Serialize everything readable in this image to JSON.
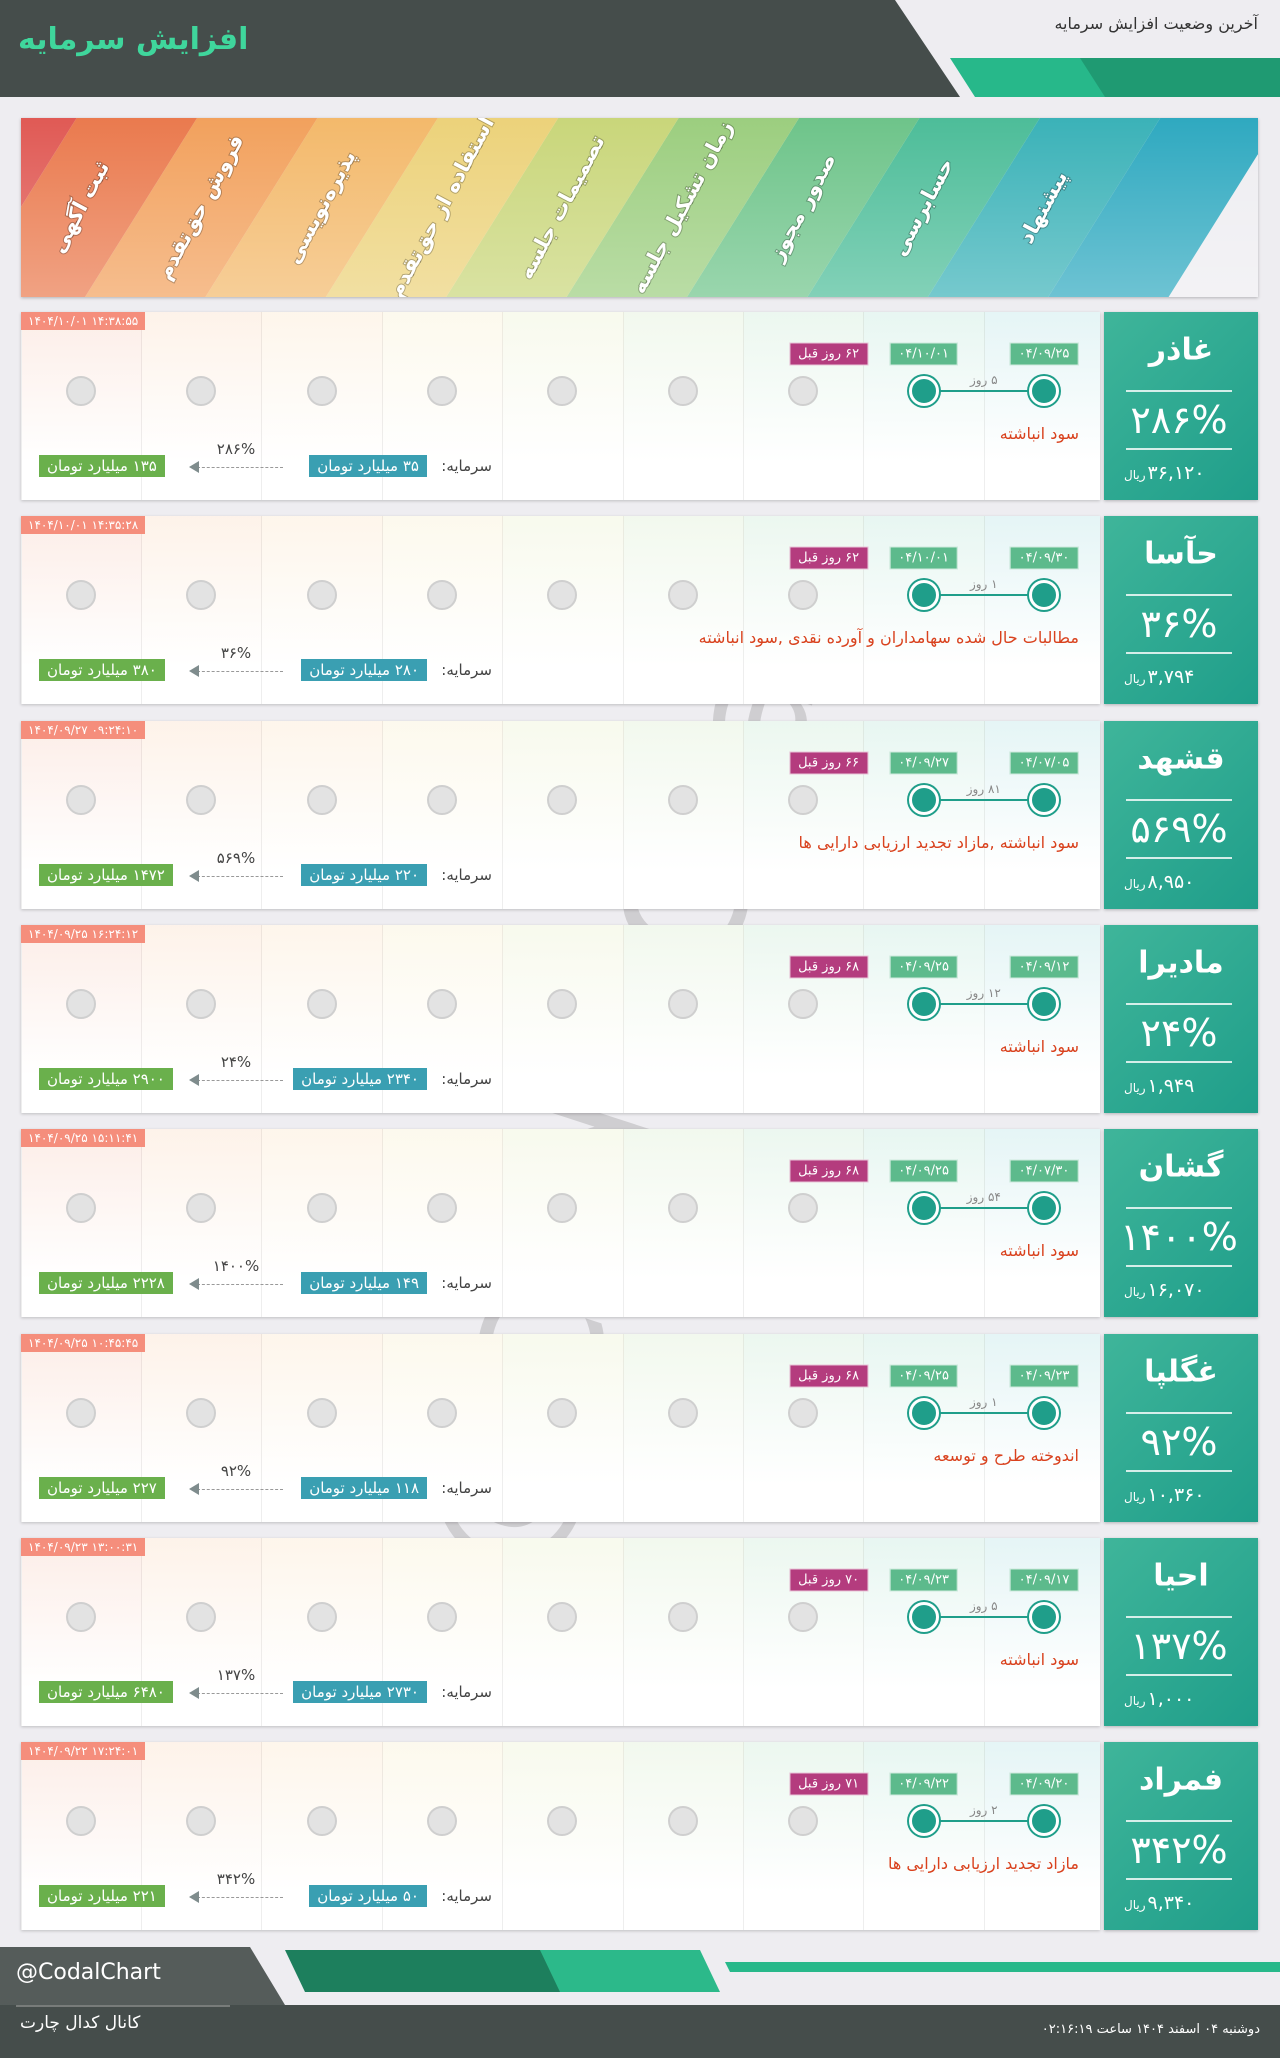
{
  "header": {
    "title": "افزایش سرمایه",
    "subtitle": "آخرین وضعیت افزایش سرمایه"
  },
  "stages": [
    "پیشنهاد",
    "حسابرسی",
    "صدور مجوز",
    "زمان تشکیل جلسه",
    "تصمیمات جلسه",
    "استفاده از حق‌تقدم",
    "پذیره‌نویسی",
    "فروش حق‌تقدم",
    "ثبت آگهی"
  ],
  "labels": {
    "capital": "سرمایه:",
    "currency": "ریال"
  },
  "rows": [
    {
      "symbol": "غاذر",
      "percent": "۲۸۶%",
      "price": "۳۶,۱۲۰",
      "timestamp": "۱۴۰۴/۱۰/۰۱ ۱۴:۳۸:۵۵",
      "start_date": "۰۴/۰۹/۲۵",
      "end_date": "۰۴/۱۰/۰۱",
      "days_ago": "۶۲ روز قبل",
      "duration": "۵ روز",
      "description": "سود انباشته",
      "capital_from": "۳۵ میلیارد تومان",
      "capital_to": "۱۳۵ میلیارد تومان",
      "growth": "۲۸۶%"
    },
    {
      "symbol": "حآسا",
      "percent": "۳۶%",
      "price": "۳,۷۹۴",
      "timestamp": "۱۴۰۴/۱۰/۰۱ ۱۴:۳۵:۲۸",
      "start_date": "۰۴/۰۹/۳۰",
      "end_date": "۰۴/۱۰/۰۱",
      "days_ago": "۶۲ روز قبل",
      "duration": "۱ روز",
      "description": "مطالبات حال شده سهامداران و آورده نقدی ,سود انباشته",
      "capital_from": "۲۸۰ میلیارد تومان",
      "capital_to": "۳۸۰ میلیارد تومان",
      "growth": "۳۶%"
    },
    {
      "symbol": "قشهد",
      "percent": "۵۶۹%",
      "price": "۸,۹۵۰",
      "timestamp": "۱۴۰۴/۰۹/۲۷ ۰۹:۲۴:۱۰",
      "start_date": "۰۴/۰۷/۰۵",
      "end_date": "۰۴/۰۹/۲۷",
      "days_ago": "۶۶ روز قبل",
      "duration": "۸۱ روز",
      "description": "سود انباشته ,مازاد تجدید ارزیابی دارایی ها",
      "capital_from": "۲۲۰ میلیارد تومان",
      "capital_to": "۱۴۷۲ میلیارد تومان",
      "growth": "۵۶۹%"
    },
    {
      "symbol": "مادیرا",
      "percent": "۲۴%",
      "price": "۱,۹۴۹",
      "timestamp": "۱۴۰۴/۰۹/۲۵ ۱۶:۲۴:۱۲",
      "start_date": "۰۴/۰۹/۱۲",
      "end_date": "۰۴/۰۹/۲۵",
      "days_ago": "۶۸ روز قبل",
      "duration": "۱۲ روز",
      "description": "سود انباشته",
      "capital_from": "۲۳۴۰ میلیارد تومان",
      "capital_to": "۲۹۰۰ میلیارد تومان",
      "growth": "۲۴%"
    },
    {
      "symbol": "گشان",
      "percent": "۱۴۰۰%",
      "price": "۱۶,۰۷۰",
      "timestamp": "۱۴۰۴/۰۹/۲۵ ۱۵:۱۱:۴۱",
      "start_date": "۰۴/۰۷/۳۰",
      "end_date": "۰۴/۰۹/۲۵",
      "days_ago": "۶۸ روز قبل",
      "duration": "۵۴ روز",
      "description": "سود انباشته",
      "capital_from": "۱۴۹ میلیارد تومان",
      "capital_to": "۲۲۲۸ میلیارد تومان",
      "growth": "۱۴۰۰%"
    },
    {
      "symbol": "غگلپا",
      "percent": "۹۲%",
      "price": "۱۰,۳۶۰",
      "timestamp": "۱۴۰۴/۰۹/۲۵ ۱۰:۴۵:۴۵",
      "start_date": "۰۴/۰۹/۲۳",
      "end_date": "۰۴/۰۹/۲۵",
      "days_ago": "۶۸ روز قبل",
      "duration": "۱ روز",
      "description": "اندوخته طرح و توسعه",
      "capital_from": "۱۱۸ میلیارد تومان",
      "capital_to": "۲۲۷ میلیارد تومان",
      "growth": "۹۲%"
    },
    {
      "symbol": "احیا",
      "percent": "۱۳۷%",
      "price": "۱,۰۰۰",
      "timestamp": "۱۴۰۴/۰۹/۲۳ ۱۳:۰۰:۳۱",
      "start_date": "۰۴/۰۹/۱۷",
      "end_date": "۰۴/۰۹/۲۳",
      "days_ago": "۷۰ روز قبل",
      "duration": "۵ روز",
      "description": "سود انباشته",
      "capital_from": "۲۷۳۰ میلیارد تومان",
      "capital_to": "۶۴۸۰ میلیارد تومان",
      "growth": "۱۳۷%"
    },
    {
      "symbol": "فمراد",
      "percent": "۳۴۲%",
      "price": "۹,۳۴۰",
      "timestamp": "۱۴۰۴/۰۹/۲۲ ۱۷:۲۴:۰۱",
      "start_date": "۰۴/۰۹/۲۰",
      "end_date": "۰۴/۰۹/۲۲",
      "days_ago": "۷۱ روز قبل",
      "duration": "۲ روز",
      "description": "مازاد تجدید ارزیابی دارایی ها",
      "capital_from": "۵۰ میلیارد تومان",
      "capital_to": "۲۲۱ میلیارد تومان",
      "growth": "۳۴۲%"
    }
  ],
  "footer": {
    "handle": "@CodalChart",
    "channel": "کانال کدال چارت",
    "datetime": "دوشنبه ۰۴ اسفند ۱۴۰۴ ساعت ۰۲:۱۶:۱۹"
  }
}
